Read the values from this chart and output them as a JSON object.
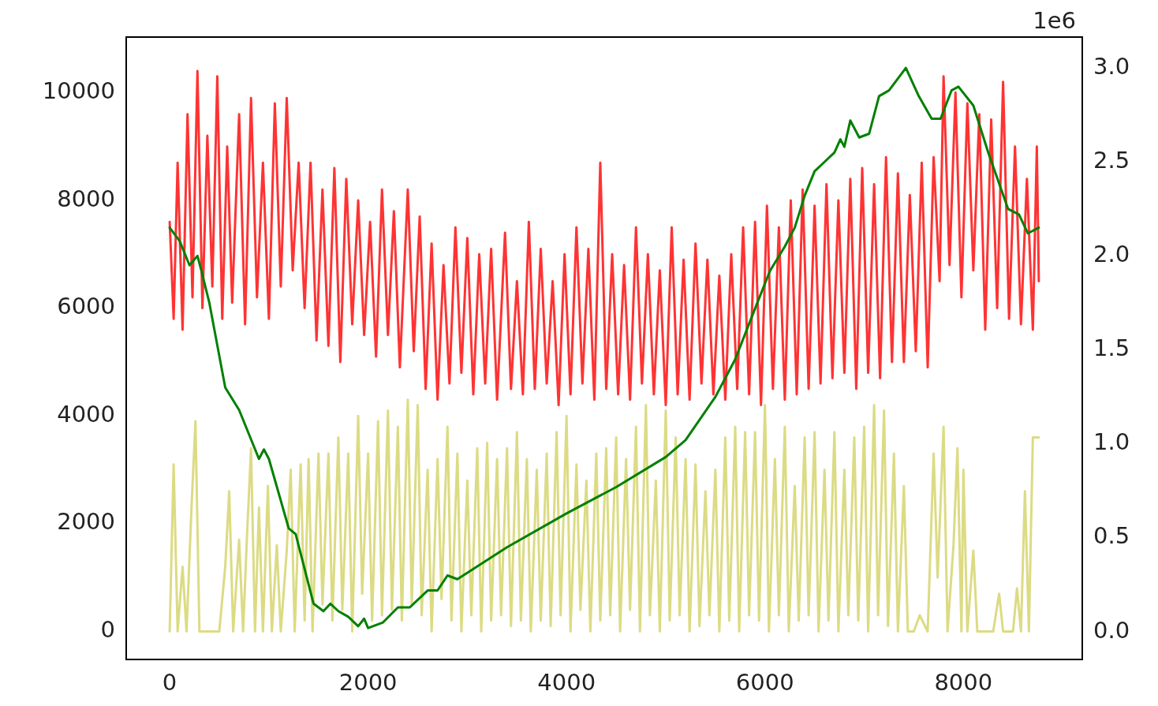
{
  "chart_data": {
    "type": "line",
    "xlim": [
      -438,
      9198
    ],
    "xticks": [
      0,
      2000,
      4000,
      6000,
      8000
    ],
    "ylim": [
      -520,
      11030
    ],
    "yticks": [
      0,
      2000,
      4000,
      6000,
      8000,
      10000
    ],
    "y2lim": [
      -0.147,
      3.164
    ],
    "y2ticks": [
      {
        "value": 0,
        "label": "0.0"
      },
      {
        "value": 0.5,
        "label": "0.5"
      },
      {
        "value": 1,
        "label": "1.0"
      },
      {
        "value": 1.5,
        "label": "1.5"
      },
      {
        "value": 2,
        "label": "2.0"
      },
      {
        "value": 2.5,
        "label": "2.5"
      },
      {
        "value": 3,
        "label": "3.0"
      }
    ],
    "annotations": [
      "1e6"
    ],
    "grid": false,
    "legend": false,
    "marker": "none",
    "line_style": "solid",
    "series": [
      {
        "color": "#dcdb84",
        "x": [
          0,
          40,
          80,
          130,
          170,
          220,
          260,
          300,
          350,
          500,
          560,
          600,
          640,
          700,
          740,
          780,
          820,
          860,
          900,
          940,
          990,
          1030,
          1080,
          1120,
          1180,
          1220,
          1260,
          1320,
          1360,
          1400,
          1440,
          1500,
          1540,
          1600,
          1640,
          1700,
          1740,
          1800,
          1840,
          1900,
          1940,
          2000,
          2040,
          2100,
          2140,
          2200,
          2240,
          2300,
          2340,
          2400,
          2440,
          2500,
          2540,
          2600,
          2640,
          2700,
          2740,
          2800,
          2840,
          2900,
          2940,
          3000,
          3040,
          3100,
          3140,
          3200,
          3240,
          3300,
          3340,
          3400,
          3440,
          3500,
          3540,
          3600,
          3640,
          3700,
          3740,
          3800,
          3840,
          3900,
          3940,
          4000,
          4040,
          4100,
          4140,
          4200,
          4240,
          4300,
          4340,
          4400,
          4440,
          4500,
          4540,
          4600,
          4640,
          4700,
          4740,
          4800,
          4840,
          4900,
          4940,
          5000,
          5040,
          5100,
          5140,
          5200,
          5240,
          5300,
          5340,
          5400,
          5440,
          5500,
          5540,
          5600,
          5640,
          5700,
          5740,
          5800,
          5840,
          5900,
          5940,
          6000,
          6040,
          6100,
          6140,
          6200,
          6240,
          6300,
          6340,
          6400,
          6440,
          6500,
          6540,
          6600,
          6640,
          6700,
          6740,
          6800,
          6840,
          6900,
          6940,
          7000,
          7040,
          7100,
          7140,
          7200,
          7240,
          7300,
          7340,
          7400,
          7440,
          7500,
          7560,
          7640,
          7700,
          7740,
          7800,
          7840,
          7900,
          7940,
          7980,
          8000,
          8040,
          8100,
          8140,
          8300,
          8360,
          8400,
          8500,
          8540,
          8580,
          8620,
          8660,
          8700,
          8760
        ],
        "values": [
          0,
          3100,
          0,
          1200,
          0,
          2300,
          3900,
          0,
          0,
          0,
          1200,
          2600,
          0,
          1700,
          0,
          1800,
          3400,
          0,
          2300,
          0,
          2700,
          0,
          1600,
          0,
          1500,
          3000,
          0,
          3100,
          200,
          3200,
          0,
          3300,
          500,
          3300,
          200,
          3600,
          400,
          3300,
          0,
          4000,
          700,
          3300,
          200,
          3900,
          300,
          4100,
          400,
          3800,
          200,
          4300,
          500,
          4200,
          300,
          3000,
          0,
          3200,
          600,
          3800,
          200,
          3300,
          0,
          2800,
          300,
          3400,
          0,
          3500,
          200,
          3200,
          300,
          3400,
          100,
          3700,
          200,
          3200,
          0,
          3000,
          200,
          3300,
          100,
          3700,
          300,
          4000,
          0,
          3100,
          400,
          2800,
          0,
          3300,
          200,
          3400,
          300,
          3600,
          0,
          3200,
          400,
          3800,
          0,
          4200,
          300,
          2800,
          0,
          4100,
          200,
          3600,
          300,
          3200,
          0,
          3100,
          100,
          2600,
          300,
          3000,
          0,
          3600,
          200,
          3800,
          0,
          3700,
          300,
          3700,
          200,
          4200,
          0,
          3200,
          300,
          3800,
          0,
          2700,
          200,
          3600,
          300,
          3700,
          0,
          3000,
          200,
          3700,
          0,
          3000,
          300,
          3600,
          200,
          3800,
          0,
          4200,
          300,
          4100,
          100,
          3300,
          0,
          2700,
          0,
          0,
          300,
          0,
          3300,
          1000,
          3800,
          0,
          1600,
          3400,
          0,
          3000,
          0,
          1500,
          0,
          0,
          700,
          0,
          0,
          800,
          0,
          2600,
          0,
          3600,
          3600
        ]
      },
      {
        "color": "#ff3333",
        "x": [
          0,
          40,
          80,
          130,
          180,
          230,
          280,
          330,
          380,
          430,
          480,
          530,
          580,
          630,
          700,
          760,
          820,
          880,
          940,
          1000,
          1060,
          1120,
          1180,
          1240,
          1300,
          1360,
          1420,
          1480,
          1540,
          1600,
          1660,
          1720,
          1780,
          1840,
          1900,
          1960,
          2020,
          2080,
          2140,
          2200,
          2260,
          2320,
          2400,
          2460,
          2520,
          2580,
          2640,
          2700,
          2760,
          2820,
          2880,
          2940,
          3000,
          3060,
          3120,
          3180,
          3240,
          3300,
          3380,
          3440,
          3500,
          3560,
          3620,
          3680,
          3740,
          3800,
          3860,
          3920,
          3980,
          4040,
          4100,
          4160,
          4220,
          4280,
          4340,
          4400,
          4460,
          4520,
          4580,
          4640,
          4700,
          4760,
          4820,
          4880,
          4940,
          5000,
          5060,
          5120,
          5180,
          5240,
          5300,
          5360,
          5420,
          5480,
          5540,
          5600,
          5660,
          5720,
          5780,
          5840,
          5900,
          5960,
          6020,
          6080,
          6140,
          6200,
          6260,
          6320,
          6380,
          6440,
          6500,
          6560,
          6620,
          6680,
          6740,
          6800,
          6860,
          6920,
          6980,
          7040,
          7100,
          7160,
          7220,
          7280,
          7340,
          7400,
          7460,
          7520,
          7580,
          7640,
          7700,
          7760,
          7800,
          7860,
          7920,
          7980,
          8040,
          8100,
          8160,
          8220,
          8280,
          8340,
          8400,
          8460,
          8520,
          8580,
          8640,
          8700,
          8740,
          8760
        ],
        "values": [
          7600,
          5800,
          8700,
          5600,
          9600,
          6200,
          10400,
          6000,
          9200,
          6400,
          10300,
          5800,
          9000,
          6100,
          9600,
          5700,
          9900,
          6200,
          8700,
          5800,
          9800,
          6400,
          9900,
          6700,
          8700,
          6000,
          8700,
          5400,
          8200,
          5300,
          8600,
          5000,
          8400,
          5700,
          8000,
          5500,
          7600,
          5100,
          8200,
          5500,
          7800,
          4900,
          8200,
          5200,
          7700,
          4500,
          7200,
          4300,
          6800,
          4600,
          7500,
          4800,
          7300,
          4400,
          7000,
          4600,
          7100,
          4300,
          7400,
          4500,
          6500,
          4400,
          7600,
          4500,
          7100,
          4600,
          6500,
          4200,
          7000,
          4400,
          7500,
          4600,
          7100,
          4300,
          8700,
          4500,
          7000,
          4400,
          6800,
          4300,
          7500,
          4600,
          7000,
          4400,
          6700,
          4200,
          7500,
          4400,
          6900,
          4300,
          7200,
          4600,
          6900,
          4400,
          6600,
          4300,
          7000,
          4500,
          7500,
          4400,
          7600,
          4200,
          7900,
          4500,
          7500,
          4300,
          8000,
          4400,
          8200,
          4500,
          7900,
          4600,
          8300,
          4700,
          8000,
          4800,
          8400,
          4500,
          8600,
          4800,
          8300,
          4700,
          8800,
          5000,
          8500,
          5000,
          8100,
          5200,
          8700,
          4900,
          8800,
          6500,
          10300,
          6800,
          10000,
          6200,
          9800,
          6700,
          9600,
          5600,
          9500,
          6000,
          10200,
          5800,
          9000,
          5700,
          8400,
          5600,
          9000,
          6500
        ]
      },
      {
        "color": "#008000",
        "axis": "y2",
        "x": [
          0,
          100,
          200,
          280,
          320,
          400,
          560,
          700,
          900,
          950,
          1000,
          1200,
          1270,
          1450,
          1550,
          1620,
          1700,
          1800,
          1900,
          1960,
          2000,
          2150,
          2300,
          2420,
          2600,
          2700,
          2800,
          2900,
          3400,
          4000,
          4500,
          5000,
          5200,
          5500,
          5700,
          5900,
          6050,
          6200,
          6300,
          6400,
          6500,
          6600,
          6700,
          6760,
          6800,
          6860,
          6950,
          7050,
          7150,
          7250,
          7420,
          7550,
          7680,
          7770,
          7880,
          7950,
          8100,
          8250,
          8450,
          8560,
          8650,
          8760
        ],
        "values": [
          2.15,
          2.08,
          1.95,
          2.0,
          1.92,
          1.75,
          1.3,
          1.18,
          0.92,
          0.97,
          0.92,
          0.55,
          0.52,
          0.15,
          0.11,
          0.15,
          0.11,
          0.08,
          0.03,
          0.07,
          0.02,
          0.05,
          0.13,
          0.13,
          0.22,
          0.22,
          0.3,
          0.28,
          0.45,
          0.63,
          0.77,
          0.93,
          1.02,
          1.25,
          1.45,
          1.72,
          1.92,
          2.05,
          2.15,
          2.32,
          2.45,
          2.5,
          2.55,
          2.62,
          2.58,
          2.72,
          2.63,
          2.65,
          2.85,
          2.88,
          3.0,
          2.85,
          2.73,
          2.73,
          2.88,
          2.9,
          2.8,
          2.55,
          2.25,
          2.22,
          2.12,
          2.15
        ]
      }
    ]
  }
}
